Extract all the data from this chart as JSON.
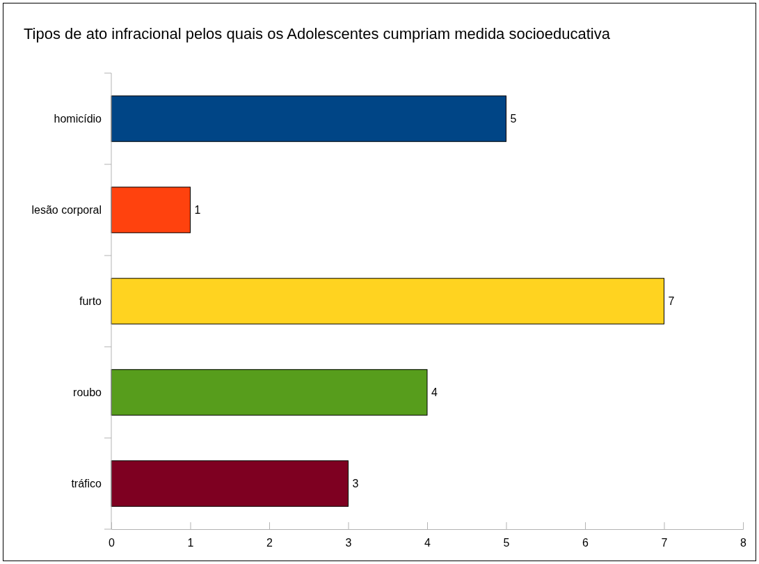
{
  "chart_data": {
    "type": "bar",
    "orientation": "horizontal",
    "title": "Tipos de ato infracional pelos quais os Adolescentes cumpriam medida socioeducativa",
    "categories": [
      "homicídio",
      "lesão corporal",
      "furto",
      "roubo",
      "tráfico"
    ],
    "values": [
      5,
      1,
      7,
      4,
      3
    ],
    "colors": [
      "#004586",
      "#ff420e",
      "#ffd320",
      "#579d1c",
      "#7e0021"
    ],
    "xlim": [
      0,
      8
    ],
    "xticks": [
      0,
      1,
      2,
      3,
      4,
      5,
      6,
      7,
      8
    ],
    "data_labels": true,
    "grid": false
  }
}
